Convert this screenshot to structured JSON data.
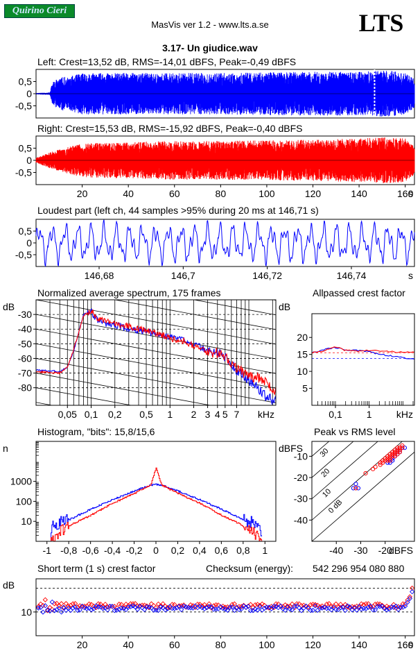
{
  "header": {
    "badge": "Quirino Cieri",
    "app": "MasVis ver 1.2 - www.lts.a.se",
    "logo": "LTS",
    "file": "3.17- Un giudice.wav",
    "checksum_label": "Checksum (energy):",
    "checksum_value": "542 296 954 080 880"
  },
  "colors": {
    "left": "#0000ff",
    "right": "#ff0000"
  },
  "chart_data": [
    {
      "id": "left-waveform",
      "type": "area",
      "title": "Left: Crest=13,52 dB, RMS=-14,01 dBFS, Peak=-0,49 dBFS",
      "ylim": [
        -1,
        1
      ],
      "yticks": [
        "0,5",
        "0",
        "-0,5"
      ],
      "xlim": [
        0,
        164
      ],
      "marker_x": 146.71,
      "envelope": {
        "x": [
          0,
          6,
          7,
          8,
          9,
          10,
          12,
          14,
          16,
          18,
          20,
          30,
          40,
          60,
          80,
          100,
          120,
          140,
          145,
          150,
          155,
          160,
          164
        ],
        "y": [
          0.03,
          0.05,
          0.45,
          0.55,
          0.6,
          0.65,
          0.7,
          0.65,
          0.75,
          0.8,
          0.85,
          0.85,
          0.85,
          0.85,
          0.85,
          0.88,
          0.9,
          0.9,
          0.92,
          0.95,
          0.93,
          0.85,
          0.6
        ]
      }
    },
    {
      "id": "right-waveform",
      "type": "area",
      "title": "Right: Crest=15,53 dB, RMS=-15,92 dBFS, Peak=-0,40 dBFS",
      "ylim": [
        -1,
        1
      ],
      "yticks": [
        "0,5",
        "0",
        "-0,5"
      ],
      "xlim": [
        0,
        164
      ],
      "xticks": [
        "20",
        "40",
        "60",
        "80",
        "100",
        "120",
        "140",
        "160"
      ],
      "xunit": "s",
      "envelope": {
        "x": [
          0,
          4,
          8,
          12,
          16,
          20,
          40,
          60,
          80,
          100,
          120,
          140,
          150,
          160,
          164
        ],
        "y": [
          0.1,
          0.25,
          0.4,
          0.5,
          0.6,
          0.7,
          0.75,
          0.8,
          0.8,
          0.82,
          0.85,
          0.9,
          0.95,
          0.9,
          0.6
        ]
      }
    },
    {
      "id": "loudest-part",
      "type": "line",
      "title": "Loudest part (left  ch, 44 samples >95% during 20 ms at 146,71 s)",
      "ylim": [
        -1,
        1
      ],
      "yticks": [
        "0,5",
        "0",
        "-0,5"
      ],
      "xlim": [
        146.665,
        146.755
      ],
      "xticks": [
        "146,68",
        "146,7",
        "146,72",
        "146,74"
      ],
      "xunit": "s",
      "samples": 880
    },
    {
      "id": "spectrum",
      "type": "line",
      "xscale": "log",
      "title": "Normalized average spectrum, 175 frames",
      "ylabel": "dB",
      "ylim": [
        -92,
        -20
      ],
      "yticks": [
        "-30",
        "-40",
        "-50",
        "-60",
        "-70",
        "-80"
      ],
      "xlim": [
        0.02,
        22
      ],
      "xticks": [
        "0,05",
        "0,1",
        "0,2",
        "0,5",
        "1",
        "2",
        "3",
        "4",
        "5",
        "7"
      ],
      "xunit": "kHz",
      "series": [
        {
          "color": "#0000ff",
          "x": [
            0.02,
            0.04,
            0.05,
            0.06,
            0.08,
            0.1,
            0.12,
            0.15,
            0.2,
            0.3,
            0.5,
            0.7,
            1,
            1.5,
            2,
            3,
            4,
            5,
            6,
            7,
            9,
            12,
            15,
            20
          ],
          "y": [
            -68,
            -69,
            -66,
            -55,
            -30,
            -28,
            -34,
            -36,
            -37,
            -40,
            -42,
            -44,
            -45,
            -47,
            -50,
            -55,
            -56,
            -59,
            -64,
            -68,
            -73,
            -78,
            -84,
            -89
          ]
        },
        {
          "color": "#ff0000",
          "x": [
            0.02,
            0.04,
            0.05,
            0.06,
            0.08,
            0.1,
            0.12,
            0.15,
            0.2,
            0.3,
            0.5,
            0.7,
            1,
            1.5,
            2,
            3,
            4,
            5,
            6,
            7,
            9,
            12,
            15,
            20
          ],
          "y": [
            -69,
            -70,
            -66,
            -54,
            -31,
            -27,
            -33,
            -35,
            -36,
            -38,
            -41,
            -43,
            -46,
            -48,
            -51,
            -56,
            -56,
            -59,
            -63,
            -66,
            -71,
            -73,
            -74,
            -82
          ]
        }
      ]
    },
    {
      "id": "allpassed-crest",
      "type": "line",
      "xscale": "log",
      "title": "Allpassed crest factor",
      "ylabel": "dB",
      "ylim": [
        0,
        27
      ],
      "yticks": [
        "5",
        "10",
        "15",
        "20"
      ],
      "xlim": [
        0.02,
        22
      ],
      "xticks": [
        "0,1",
        "1"
      ],
      "xunit": "kHz",
      "ref_lines": [
        {
          "color": "#ff0000",
          "y": 15.5
        },
        {
          "color": "#0000ff",
          "y": 13.8
        }
      ],
      "series": [
        {
          "color": "#0000ff",
          "x": [
            0.02,
            0.05,
            0.1,
            0.2,
            0.5,
            1,
            2,
            5,
            10,
            20
          ],
          "y": [
            15.5,
            16.5,
            17,
            16.4,
            16.1,
            15.8,
            15,
            14.5,
            14,
            13.8
          ]
        },
        {
          "color": "#ff0000",
          "x": [
            0.02,
            0.05,
            0.1,
            0.2,
            0.5,
            1,
            2,
            5,
            10,
            20
          ],
          "y": [
            15.4,
            16.2,
            17.2,
            16.2,
            16,
            16.2,
            16,
            15.8,
            15.6,
            15.6
          ]
        }
      ]
    },
    {
      "id": "histogram",
      "type": "line",
      "yscale": "log",
      "title": "Histogram, \"bits\": 15,8/15,6",
      "ylabel": "n",
      "ylim": [
        1,
        100000
      ],
      "yticks": [
        "1000",
        "100",
        "10"
      ],
      "xlim": [
        -1.1,
        1.1
      ],
      "xticks": [
        "-1",
        "-0,8",
        "-0,6",
        "-0,4",
        "-0,2",
        "0",
        "0,2",
        "0,4",
        "0,6",
        "0,8",
        "1"
      ],
      "series": [
        {
          "color": "#0000ff",
          "x": [
            -0.97,
            -0.95,
            -0.9,
            -0.8,
            -0.6,
            -0.4,
            -0.2,
            -0.05,
            0,
            0.05,
            0.2,
            0.4,
            0.6,
            0.8,
            0.9,
            0.95,
            0.97
          ],
          "y": [
            1,
            6,
            8,
            12,
            40,
            120,
            330,
            650,
            700,
            650,
            330,
            120,
            40,
            12,
            8,
            6,
            1
          ]
        },
        {
          "color": "#ff0000",
          "x": [
            -0.95,
            -0.92,
            -0.85,
            -0.8,
            -0.6,
            -0.4,
            -0.2,
            -0.05,
            0,
            0.05,
            0.2,
            0.4,
            0.6,
            0.8,
            0.85,
            0.92,
            0.95
          ],
          "y": [
            1,
            2,
            4,
            6,
            20,
            80,
            250,
            650,
            5000,
            650,
            250,
            80,
            20,
            6,
            4,
            2,
            1
          ]
        }
      ]
    },
    {
      "id": "peak-vs-rms",
      "type": "scatter",
      "title": "Peak vs RMS level",
      "ylabel": "dBFS",
      "xlabel": "dBFS",
      "xlim": [
        -50,
        -8
      ],
      "ylim": [
        -50,
        -3
      ],
      "xticks": [
        "-40",
        "-30",
        "-20"
      ],
      "yticks": [
        "-10",
        "-20",
        "-30",
        "-40"
      ],
      "crest_labels": [
        "40",
        "30",
        "20",
        "10",
        "0 dB"
      ],
      "series": [
        {
          "color": "#0000ff",
          "x": [
            -33,
            -31,
            -32,
            -19,
            -18,
            -17,
            -16,
            -15,
            -15,
            -14,
            -13,
            -12,
            -18,
            -16,
            -14,
            -15,
            -17,
            -16
          ],
          "y": [
            -25,
            -25,
            -23,
            -13,
            -12,
            -11,
            -10,
            -9,
            -8,
            -7,
            -6,
            -6,
            -13,
            -10,
            -8,
            -7,
            -12,
            -9
          ]
        },
        {
          "color": "#ff0000",
          "x": [
            -32,
            -28,
            -25,
            -24,
            -22,
            -21,
            -20,
            -19,
            -18,
            -18,
            -17,
            -17,
            -16,
            -16,
            -15,
            -15,
            -14,
            -14,
            -13,
            -20,
            -19,
            -17,
            -16,
            -18,
            -15,
            -14,
            -16,
            -18,
            -21,
            -19,
            -22,
            -17,
            -15,
            -13,
            -14,
            -16
          ],
          "y": [
            -25,
            -18,
            -16,
            -15,
            -14,
            -13,
            -12,
            -12,
            -11,
            -10,
            -10,
            -9,
            -9,
            -8,
            -8,
            -7,
            -7,
            -6,
            -6,
            -11,
            -10,
            -9,
            -8,
            -12,
            -9,
            -8,
            -7,
            -9,
            -12,
            -11,
            -13,
            -8,
            -6,
            -5,
            -6,
            -10
          ]
        }
      ]
    },
    {
      "id": "short-term-crest",
      "type": "scatter",
      "title": "Short term (1 s) crest factor",
      "ylabel": "dB",
      "ylim": [
        5,
        17
      ],
      "yticks": [
        "10"
      ],
      "ref_lines": [
        {
          "y": 10
        },
        {
          "y": 15
        }
      ],
      "xlim": [
        0,
        164
      ],
      "xticks": [
        "20",
        "40",
        "60",
        "80",
        "100",
        "120",
        "140",
        "160"
      ],
      "xunit": "s",
      "series": [
        {
          "color": "#ff0000",
          "baseline": 11.3
        },
        {
          "color": "#0000ff",
          "baseline": 10.8
        }
      ]
    }
  ]
}
